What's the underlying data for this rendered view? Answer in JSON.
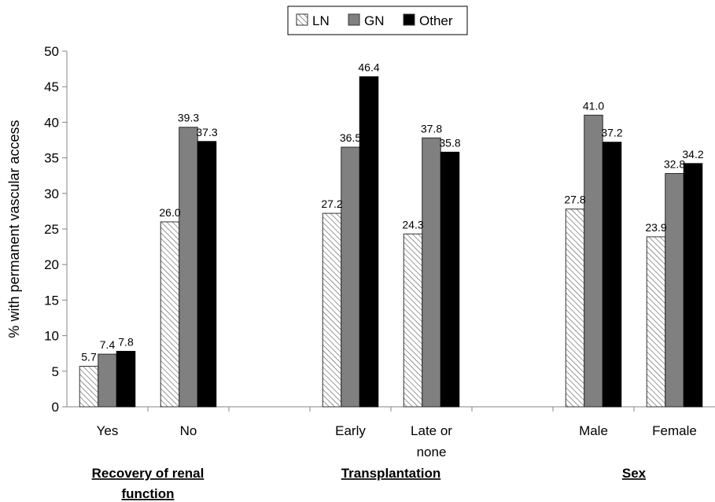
{
  "chart_data": {
    "type": "bar",
    "ylabel": "% with permanent vascular access",
    "ylim": [
      0,
      50
    ],
    "yticks": [
      0,
      5,
      10,
      15,
      20,
      25,
      30,
      35,
      40,
      45,
      50
    ],
    "legend_position": "top-center",
    "grid": false,
    "categories": [
      "Yes",
      "No",
      "Early",
      "Late or none",
      "Male",
      "Female"
    ],
    "category_label_lines": [
      [
        "Yes"
      ],
      [
        "No"
      ],
      [
        "Early"
      ],
      [
        "Late or",
        "none"
      ],
      [
        "Male"
      ],
      [
        "Female"
      ]
    ],
    "groups": [
      {
        "label_lines": [
          "Recovery of renal",
          "function"
        ],
        "categories": [
          "Yes",
          "No"
        ]
      },
      {
        "label_lines": [
          "Transplantation"
        ],
        "categories": [
          "Early",
          "Late or none"
        ]
      },
      {
        "label_lines": [
          "Sex"
        ],
        "categories": [
          "Male",
          "Female"
        ]
      }
    ],
    "series": [
      {
        "name": "LN",
        "color": "#ffffff",
        "pattern": "hatch",
        "values": [
          5.7,
          26.0,
          27.2,
          24.3,
          27.8,
          23.9
        ],
        "labels": [
          "5.7",
          "26.0",
          "27.2",
          "24.3",
          "27.8",
          "23.9"
        ]
      },
      {
        "name": "GN",
        "color": "#808080",
        "pattern": "solid",
        "values": [
          7.4,
          39.3,
          36.5,
          37.8,
          41.0,
          32.8
        ],
        "labels": [
          "7.4",
          "39.3",
          "36.5",
          "37.8",
          "41.0",
          "32.8"
        ]
      },
      {
        "name": "Other",
        "color": "#000000",
        "pattern": "solid",
        "values": [
          7.8,
          37.3,
          46.4,
          35.8,
          37.2,
          34.2
        ],
        "labels": [
          "7.8",
          "37.3",
          "46.4",
          "35.8",
          "37.2",
          "34.2"
        ]
      }
    ]
  }
}
